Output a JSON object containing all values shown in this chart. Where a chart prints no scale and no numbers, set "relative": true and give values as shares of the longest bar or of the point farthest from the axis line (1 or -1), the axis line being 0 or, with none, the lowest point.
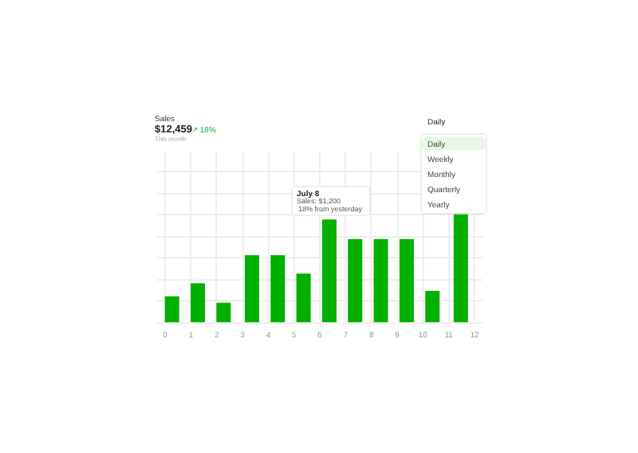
{
  "chart_data": {
    "type": "bar",
    "title": "Sales",
    "subtitle": "$12,459",
    "relative": true,
    "grid": true,
    "color": "#00b000",
    "x": [
      0.3,
      1.3,
      2.3,
      3.4,
      4.4,
      5.4,
      6.4,
      7.4,
      8.4,
      9.4,
      10.4,
      11.5
    ],
    "values": [
      0.24,
      0.36,
      0.18,
      0.62,
      0.62,
      0.45,
      0.95,
      0.77,
      0.77,
      0.77,
      0.29,
      1
    ],
    "xlim": [
      0,
      12
    ],
    "xticks": [
      0,
      1,
      2,
      3,
      4,
      5,
      6,
      7,
      8,
      9,
      10,
      11,
      12
    ],
    "annotations": [
      "↗ 18%",
      "This month",
      "Daily",
      "Daily",
      "Weekly",
      "Monthly",
      "Quarterly",
      "Yearly",
      "July 8",
      "Sales: $1,200",
      "18% from yesterday"
    ]
  }
}
